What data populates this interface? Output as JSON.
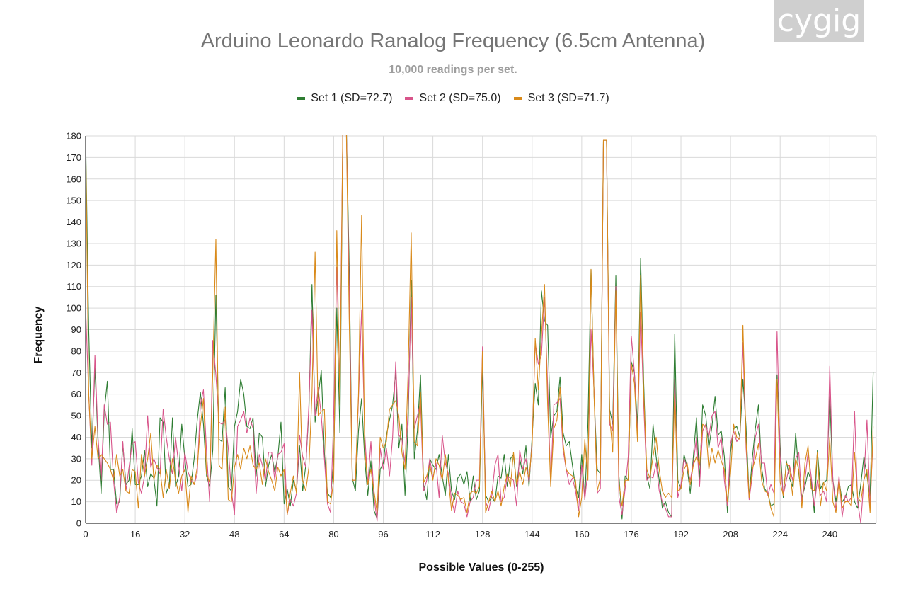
{
  "watermark": {
    "text": "cygig"
  },
  "colors": {
    "set1": "#2e7d32",
    "set2": "#d8548a",
    "set3": "#d98a1a",
    "grid": "#d9d9d9",
    "axis": "#333333"
  },
  "chart_data": {
    "type": "line",
    "title": "Arduino Leonardo Ranalog Frequency (6.5cm Antenna)",
    "subtitle": "10,000 readings per set.",
    "xlabel": "Possible Values (0-255)",
    "ylabel": "Frequency",
    "xlim": [
      0,
      255
    ],
    "ylim": [
      0,
      180
    ],
    "x_ticks": [
      0,
      16,
      32,
      48,
      64,
      80,
      96,
      112,
      128,
      144,
      160,
      176,
      192,
      208,
      224,
      240
    ],
    "y_ticks": [
      0,
      10,
      20,
      30,
      40,
      50,
      60,
      70,
      80,
      90,
      100,
      110,
      120,
      130,
      140,
      150,
      160,
      170,
      180
    ],
    "grid": true,
    "legend_position": "top",
    "x_start": 0,
    "x_step": 1,
    "series": [
      {
        "name": "Set 1 (SD=72.7)",
        "color_key": "set1",
        "values": [
          180,
          90,
          35,
          72,
          38,
          14,
          52,
          66,
          25,
          25,
          9,
          10,
          37,
          18,
          20,
          44,
          18,
          18,
          22,
          34,
          17,
          23,
          21,
          8,
          49,
          47,
          14,
          18,
          49,
          17,
          22,
          46,
          30,
          17,
          18,
          30,
          48,
          61,
          46,
          22,
          17,
          34,
          106,
          39,
          38,
          63,
          17,
          15,
          45,
          52,
          67,
          60,
          45,
          44,
          49,
          22,
          42,
          40,
          17,
          27,
          32,
          24,
          31,
          47,
          9,
          16,
          8,
          20,
          15,
          36,
          15,
          27,
          52,
          111,
          47,
          59,
          71,
          33,
          14,
          12,
          29,
          100,
          42,
          190,
          190,
          120,
          21,
          15,
          43,
          58,
          30,
          13,
          29,
          6,
          2,
          25,
          28,
          41,
          48,
          55,
          70,
          35,
          46,
          13,
          46,
          113,
          30,
          43,
          69,
          18,
          11,
          30,
          27,
          25,
          32,
          22,
          13,
          32,
          15,
          11,
          21,
          23,
          18,
          24,
          10,
          22,
          11,
          15,
          73,
          13,
          10,
          12,
          10,
          22,
          21,
          32,
          17,
          30,
          32,
          17,
          30,
          23,
          36,
          17,
          40,
          65,
          55,
          108,
          94,
          92,
          40,
          50,
          52,
          68,
          42,
          36,
          38,
          27,
          17,
          12,
          32,
          11,
          46,
          118,
          59,
          25,
          23,
          178,
          178,
          53,
          46,
          115,
          22,
          2,
          22,
          20,
          75,
          70,
          45,
          123,
          65,
          22,
          16,
          46,
          31,
          20,
          7,
          10,
          5,
          3,
          88,
          20,
          16,
          32,
          26,
          14,
          31,
          49,
          20,
          55,
          50,
          35,
          45,
          59,
          41,
          43,
          31,
          5,
          33,
          44,
          45,
          40,
          67,
          45,
          12,
          30,
          44,
          55,
          26,
          16,
          14,
          8,
          9,
          69,
          36,
          12,
          29,
          21,
          17,
          42,
          23,
          12,
          17,
          24,
          20,
          5,
          34,
          16,
          19,
          20,
          59,
          20,
          10,
          20,
          10,
          12,
          17,
          18,
          10,
          7,
          18,
          31,
          22,
          12,
          70
        ]
      },
      {
        "name": "Set 2 (SD=75.0)",
        "color_key": "set2",
        "values": [
          100,
          60,
          27,
          78,
          40,
          20,
          55,
          46,
          47,
          20,
          5,
          12,
          38,
          15,
          26,
          37,
          38,
          19,
          14,
          22,
          50,
          26,
          30,
          26,
          23,
          53,
          40,
          30,
          23,
          40,
          27,
          15,
          33,
          24,
          20,
          18,
          23,
          55,
          62,
          33,
          10,
          85,
          69,
          47,
          46,
          48,
          35,
          15,
          4,
          45,
          48,
          52,
          42,
          49,
          44,
          14,
          32,
          27,
          20,
          33,
          33,
          20,
          32,
          33,
          37,
          4,
          11,
          8,
          14,
          41,
          31,
          26,
          55,
          99,
          50,
          63,
          50,
          30,
          9,
          5,
          50,
          119,
          64,
          190,
          190,
          110,
          20,
          20,
          58,
          99,
          42,
          18,
          38,
          12,
          1,
          35,
          25,
          35,
          22,
          40,
          75,
          41,
          39,
          28,
          52,
          105,
          44,
          50,
          56,
          15,
          20,
          30,
          21,
          28,
          12,
          41,
          28,
          23,
          11,
          5,
          15,
          10,
          9,
          3,
          10,
          12,
          20,
          20,
          82,
          10,
          6,
          13,
          27,
          32,
          10,
          12,
          22,
          21,
          20,
          8,
          34,
          25,
          30,
          19,
          38,
          84,
          74,
          78,
          105,
          64,
          18,
          55,
          56,
          58,
          34,
          25,
          18,
          21,
          15,
          6,
          27,
          11,
          25,
          90,
          61,
          14,
          16,
          178,
          178,
          46,
          43,
          110,
          12,
          4,
          16,
          31,
          87,
          70,
          40,
          98,
          55,
          20,
          22,
          21,
          28,
          15,
          10,
          7,
          3,
          3,
          67,
          12,
          18,
          30,
          26,
          20,
          28,
          40,
          17,
          43,
          46,
          40,
          50,
          52,
          35,
          40,
          20,
          8,
          37,
          43,
          38,
          40,
          84,
          35,
          11,
          22,
          40,
          46,
          28,
          28,
          13,
          18,
          14,
          89,
          30,
          13,
          20,
          27,
          20,
          30,
          33,
          10,
          20,
          33,
          22,
          8,
          20,
          13,
          15,
          10,
          73,
          20,
          6,
          22,
          3,
          13,
          10,
          12,
          52,
          10,
          0,
          20,
          48,
          8,
          40
        ]
      },
      {
        "name": "Set 3 (SD=71.7)",
        "color_key": "set3",
        "values": [
          180,
          60,
          30,
          45,
          30,
          32,
          30,
          28,
          25,
          20,
          32,
          22,
          25,
          15,
          14,
          25,
          24,
          7,
          32,
          22,
          30,
          42,
          20,
          27,
          25,
          12,
          25,
          16,
          30,
          20,
          14,
          22,
          25,
          5,
          22,
          18,
          26,
          45,
          58,
          23,
          19,
          70,
          132,
          27,
          25,
          54,
          11,
          10,
          26,
          32,
          25,
          35,
          30,
          36,
          27,
          25,
          28,
          18,
          30,
          24,
          20,
          15,
          26,
          22,
          25,
          4,
          14,
          22,
          14,
          70,
          20,
          15,
          26,
          60,
          126,
          50,
          52,
          53,
          10,
          9,
          20,
          136,
          55,
          190,
          190,
          95,
          20,
          20,
          60,
          143,
          35,
          18,
          25,
          15,
          5,
          40,
          35,
          38,
          53,
          55,
          57,
          50,
          33,
          25,
          70,
          135,
          38,
          36,
          61,
          19,
          22,
          27,
          20,
          30,
          27,
          20,
          32,
          20,
          6,
          14,
          13,
          11,
          12,
          5,
          14,
          15,
          14,
          17,
          80,
          5,
          10,
          15,
          10,
          15,
          8,
          17,
          23,
          17,
          33,
          18,
          24,
          18,
          26,
          21,
          36,
          86,
          62,
          87,
          111,
          55,
          17,
          44,
          48,
          63,
          37,
          25,
          23,
          22,
          20,
          3,
          12,
          39,
          20,
          118,
          58,
          15,
          21,
          178,
          178,
          50,
          33,
          108,
          19,
          8,
          20,
          20,
          74,
          65,
          38,
          115,
          60,
          25,
          21,
          31,
          40,
          25,
          15,
          12,
          14,
          12,
          60,
          15,
          16,
          25,
          28,
          18,
          27,
          31,
          27,
          46,
          45,
          25,
          35,
          28,
          34,
          29,
          25,
          10,
          23,
          46,
          40,
          39,
          92,
          38,
          12,
          25,
          30,
          37,
          20,
          15,
          14,
          7,
          3,
          67,
          19,
          13,
          28,
          26,
          13,
          30,
          25,
          7,
          28,
          36,
          16,
          15,
          33,
          8,
          19,
          15,
          40,
          10,
          5,
          20,
          7,
          10,
          10,
          8,
          33,
          12,
          10,
          20,
          25,
          5,
          45
        ]
      }
    ]
  }
}
